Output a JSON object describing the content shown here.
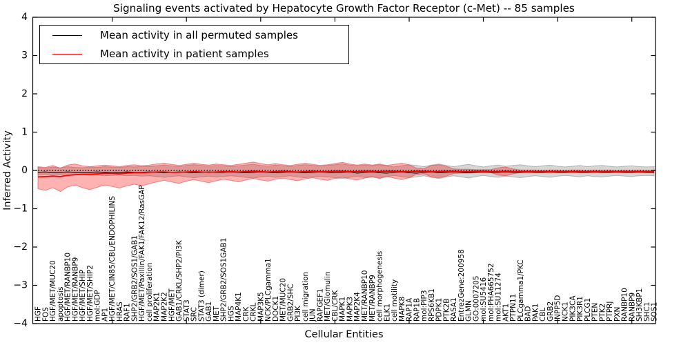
{
  "figure": {
    "title": "Signaling events activated by Hepatocyte Growth Factor Receptor (c-Met) -- 85 samples",
    "xlabel": "Cellular Entities",
    "ylabel": "Inferred Activity",
    "legend": [
      {
        "label": "Mean activity in all permuted samples",
        "color": "#000000"
      },
      {
        "label": "Mean activity in patient samples",
        "color": "#ff0000"
      }
    ]
  },
  "chart_data": {
    "type": "line",
    "title": "Signaling events activated by Hepatocyte Growth Factor Receptor (c-Met) -- 85 samples",
    "xlabel": "Cellular Entities",
    "ylabel": "Inferred Activity",
    "ylim": [
      -4,
      4
    ],
    "yticks": [
      -4,
      -3,
      -2,
      -1,
      0,
      1,
      2,
      3,
      4
    ],
    "grid": false,
    "legend_position": "upper left",
    "reference_line_y": 0,
    "reference_line_style": "dotted",
    "colors": {
      "permuted_line": "#000000",
      "patient_line": "#ff0000",
      "patient_band": "rgba(255,0,0,0.30)",
      "patient_band_edge": "rgba(225,60,60,0.55)",
      "permuted_band": "rgba(128,128,128,0.32)",
      "permuted_band_edge": "rgba(128,128,128,0.5)"
    },
    "categories": [
      "HGF",
      "FOS",
      "HGF/MET/MUC20",
      "apoptosis",
      "HGF/MET/RANBP10",
      "HGF/MET/RANBP9",
      "HGF/MET/SHIP",
      "HGF/MET/SHIP2",
      "mol:GDP",
      "AP1",
      "HGF/MET/CIN85/CBL/ENDOPHILINS",
      "HRAS",
      "RAF1",
      "SHP2/GRB2/SOS1/GAB1",
      "HGF/MET/Paxillin/FAK1/FAK12/RasGAP",
      "cell proliferation",
      "MAP2K1",
      "MAP2K2",
      "HGF/MET",
      "GAB1/CRKL/SHP2/PI3K",
      "STAT3",
      "SRC",
      "STAT3 (dimer)",
      "GAB1",
      "MET",
      "SHP2/GRB2/SOS1GAB1",
      "HGS",
      "MAP4K1",
      "CRK",
      "CRKL",
      "MAP3K5",
      "NCK/PLCgamma1",
      "DOCK1",
      "MET/MUC20",
      "GRB2/SHC",
      "PI3K",
      "cell migration",
      "JUN",
      "RAPGEF1",
      "MET/Glomulin",
      "CBL/CRK",
      "MAPK1",
      "MAPK3",
      "MAP2K4",
      "MET/RANBP10",
      "MET/RANBP9",
      "cell morphogenesis",
      "ELK1",
      "cell motility",
      "MAPK8",
      "RAP1A",
      "RAP1B",
      "mol:PIP3",
      "RPS6KB1",
      "PDPK1",
      "PTK2B",
      "RASA1",
      "EntrezGene:200958",
      "GLMN",
      "GO:0007205",
      "mol:SU5416",
      "mol:PHA665752",
      "mol:SU11274",
      "AKT1",
      "PTPN11",
      "PLCgamma1/PKC",
      "BAD",
      "PAK1",
      "CBL",
      "GRB2",
      "INPP5D",
      "NCK1",
      "PIK3CA",
      "PIK3R1",
      "PLCG1",
      "PTEN",
      "PTK2",
      "PTPRJ",
      "PXN",
      "RANBP10",
      "RANBP9",
      "SH3KBP1",
      "SHC1",
      "SOS1"
    ],
    "series": [
      {
        "name": "Mean activity in all permuted samples",
        "color": "#000000",
        "style": "solid",
        "values": [
          -0.05,
          -0.04,
          -0.06,
          -0.05,
          -0.04,
          -0.05,
          -0.06,
          -0.05,
          -0.04,
          -0.05,
          -0.06,
          -0.05,
          -0.04,
          -0.05,
          -0.05,
          -0.04,
          -0.05,
          -0.06,
          -0.05,
          -0.04,
          -0.05,
          -0.06,
          -0.05,
          -0.04,
          -0.05,
          -0.05,
          -0.04,
          -0.05,
          -0.06,
          -0.05,
          -0.04,
          -0.05,
          -0.06,
          -0.05,
          -0.04,
          -0.05,
          -0.06,
          -0.05,
          -0.04,
          -0.05,
          -0.06,
          -0.05,
          -0.04,
          -0.07,
          -0.05,
          -0.04,
          -0.06,
          -0.07,
          -0.05,
          -0.04,
          -0.06,
          -0.07,
          -0.05,
          -0.04,
          -0.06,
          -0.05,
          -0.04,
          -0.05,
          -0.06,
          -0.05,
          -0.04,
          -0.05,
          -0.05,
          -0.04,
          -0.05,
          -0.05,
          -0.04,
          -0.05,
          -0.05,
          -0.04,
          -0.05,
          -0.05,
          -0.04,
          -0.05,
          -0.05,
          -0.04,
          -0.05,
          -0.05,
          -0.04,
          -0.05,
          -0.05,
          -0.04,
          -0.05,
          -0.05
        ]
      },
      {
        "name": "Mean activity in patient samples",
        "color": "#ff0000",
        "style": "solid",
        "values": [
          -0.17,
          -0.16,
          -0.15,
          -0.16,
          -0.13,
          -0.11,
          -0.1,
          -0.1,
          -0.09,
          -0.08,
          -0.08,
          -0.09,
          -0.07,
          -0.06,
          -0.06,
          -0.05,
          -0.04,
          -0.04,
          -0.05,
          -0.05,
          -0.04,
          -0.03,
          -0.04,
          -0.05,
          -0.04,
          -0.03,
          -0.03,
          -0.04,
          -0.03,
          -0.02,
          -0.03,
          -0.04,
          -0.03,
          -0.02,
          -0.03,
          -0.04,
          -0.03,
          -0.02,
          -0.03,
          -0.03,
          -0.02,
          -0.02,
          -0.03,
          -0.03,
          -0.02,
          -0.02,
          -0.03,
          -0.02,
          -0.02,
          -0.03,
          -0.03,
          -0.02,
          -0.02,
          -0.03,
          -0.03,
          -0.02,
          -0.02,
          -0.03,
          -0.03,
          -0.02,
          -0.02,
          -0.03,
          -0.03,
          -0.02,
          -0.03,
          -0.03,
          -0.03,
          -0.03,
          -0.03,
          -0.03,
          -0.03,
          -0.03,
          -0.03,
          -0.03,
          -0.03,
          -0.03,
          -0.03,
          -0.03,
          -0.03,
          -0.03,
          -0.03,
          -0.03,
          -0.03,
          -0.03
        ]
      }
    ],
    "bands": [
      {
        "name": "permuted-samples-range",
        "upper": [
          0.08,
          0.06,
          0.09,
          0.07,
          0.1,
          0.08,
          0.07,
          0.09,
          0.08,
          0.1,
          0.09,
          0.08,
          0.1,
          0.09,
          0.11,
          0.1,
          0.12,
          0.14,
          0.12,
          0.1,
          0.13,
          0.15,
          0.13,
          0.11,
          0.13,
          0.12,
          0.1,
          0.12,
          0.14,
          0.16,
          0.13,
          0.11,
          0.14,
          0.12,
          0.1,
          0.13,
          0.15,
          0.13,
          0.11,
          0.13,
          0.15,
          0.17,
          0.14,
          0.12,
          0.14,
          0.12,
          0.15,
          0.12,
          0.09,
          0.12,
          0.15,
          0.13,
          0.1,
          0.14,
          0.17,
          0.13,
          0.1,
          0.13,
          0.16,
          0.12,
          0.09,
          0.12,
          0.14,
          0.11,
          0.13,
          0.15,
          0.12,
          0.1,
          0.12,
          0.14,
          0.11,
          0.09,
          0.11,
          0.13,
          0.1,
          0.12,
          0.13,
          0.11,
          0.09,
          0.11,
          0.12,
          0.1,
          0.09,
          0.1
        ],
        "lower": [
          -0.12,
          -0.1,
          -0.13,
          -0.11,
          -0.14,
          -0.12,
          -0.11,
          -0.13,
          -0.12,
          -0.14,
          -0.13,
          -0.12,
          -0.14,
          -0.13,
          -0.15,
          -0.14,
          -0.16,
          -0.18,
          -0.16,
          -0.14,
          -0.17,
          -0.19,
          -0.17,
          -0.15,
          -0.17,
          -0.16,
          -0.14,
          -0.16,
          -0.18,
          -0.2,
          -0.17,
          -0.15,
          -0.18,
          -0.16,
          -0.14,
          -0.17,
          -0.19,
          -0.17,
          -0.15,
          -0.17,
          -0.19,
          -0.21,
          -0.18,
          -0.16,
          -0.18,
          -0.16,
          -0.19,
          -0.16,
          -0.13,
          -0.16,
          -0.19,
          -0.17,
          -0.14,
          -0.18,
          -0.21,
          -0.17,
          -0.14,
          -0.17,
          -0.2,
          -0.16,
          -0.13,
          -0.16,
          -0.18,
          -0.15,
          -0.17,
          -0.19,
          -0.16,
          -0.14,
          -0.16,
          -0.18,
          -0.15,
          -0.13,
          -0.15,
          -0.17,
          -0.14,
          -0.16,
          -0.17,
          -0.15,
          -0.13,
          -0.15,
          -0.16,
          -0.14,
          -0.13,
          -0.14
        ]
      },
      {
        "name": "patient-samples-range",
        "upper": [
          0.1,
          0.08,
          0.13,
          0.06,
          0.14,
          0.17,
          0.12,
          0.1,
          0.12,
          0.14,
          0.12,
          0.1,
          0.13,
          0.15,
          0.12,
          0.14,
          0.17,
          0.19,
          0.16,
          0.13,
          0.16,
          0.19,
          0.16,
          0.14,
          0.17,
          0.15,
          0.13,
          0.16,
          0.19,
          0.22,
          0.18,
          0.15,
          0.18,
          0.15,
          0.13,
          0.16,
          0.19,
          0.16,
          0.13,
          0.15,
          0.18,
          0.21,
          0.17,
          0.14,
          0.17,
          0.14,
          0.17,
          0.13,
          0.16,
          0.19,
          0.15,
          0.06,
          0.05,
          0.13,
          0.15,
          0.11,
          0.04,
          0.03,
          0.03,
          0.02,
          0.02,
          0.02,
          0.07,
          0.09,
          0.04,
          0.01,
          0.01,
          0.01,
          0.0,
          0.01,
          0.01,
          0.0,
          0.01,
          0.01,
          0.0,
          0.01,
          0.0,
          0.01,
          0.0,
          0.01,
          0.0,
          0.01,
          0.0,
          0.01
        ],
        "lower": [
          -0.48,
          -0.52,
          -0.45,
          -0.55,
          -0.43,
          -0.38,
          -0.45,
          -0.5,
          -0.44,
          -0.38,
          -0.42,
          -0.46,
          -0.4,
          -0.36,
          -0.4,
          -0.35,
          -0.3,
          -0.26,
          -0.3,
          -0.34,
          -0.28,
          -0.24,
          -0.28,
          -0.32,
          -0.27,
          -0.23,
          -0.26,
          -0.3,
          -0.25,
          -0.21,
          -0.25,
          -0.28,
          -0.23,
          -0.2,
          -0.24,
          -0.27,
          -0.22,
          -0.19,
          -0.23,
          -0.26,
          -0.21,
          -0.18,
          -0.22,
          -0.25,
          -0.2,
          -0.17,
          -0.21,
          -0.16,
          -0.2,
          -0.24,
          -0.19,
          -0.1,
          -0.09,
          -0.17,
          -0.19,
          -0.15,
          -0.08,
          -0.07,
          -0.07,
          -0.06,
          -0.06,
          -0.06,
          -0.12,
          -0.14,
          -0.09,
          -0.06,
          -0.06,
          -0.06,
          -0.06,
          -0.06,
          -0.06,
          -0.06,
          -0.06,
          -0.06,
          -0.06,
          -0.06,
          -0.06,
          -0.06,
          -0.06,
          -0.06,
          -0.06,
          -0.06,
          -0.06,
          -0.06
        ]
      }
    ]
  }
}
